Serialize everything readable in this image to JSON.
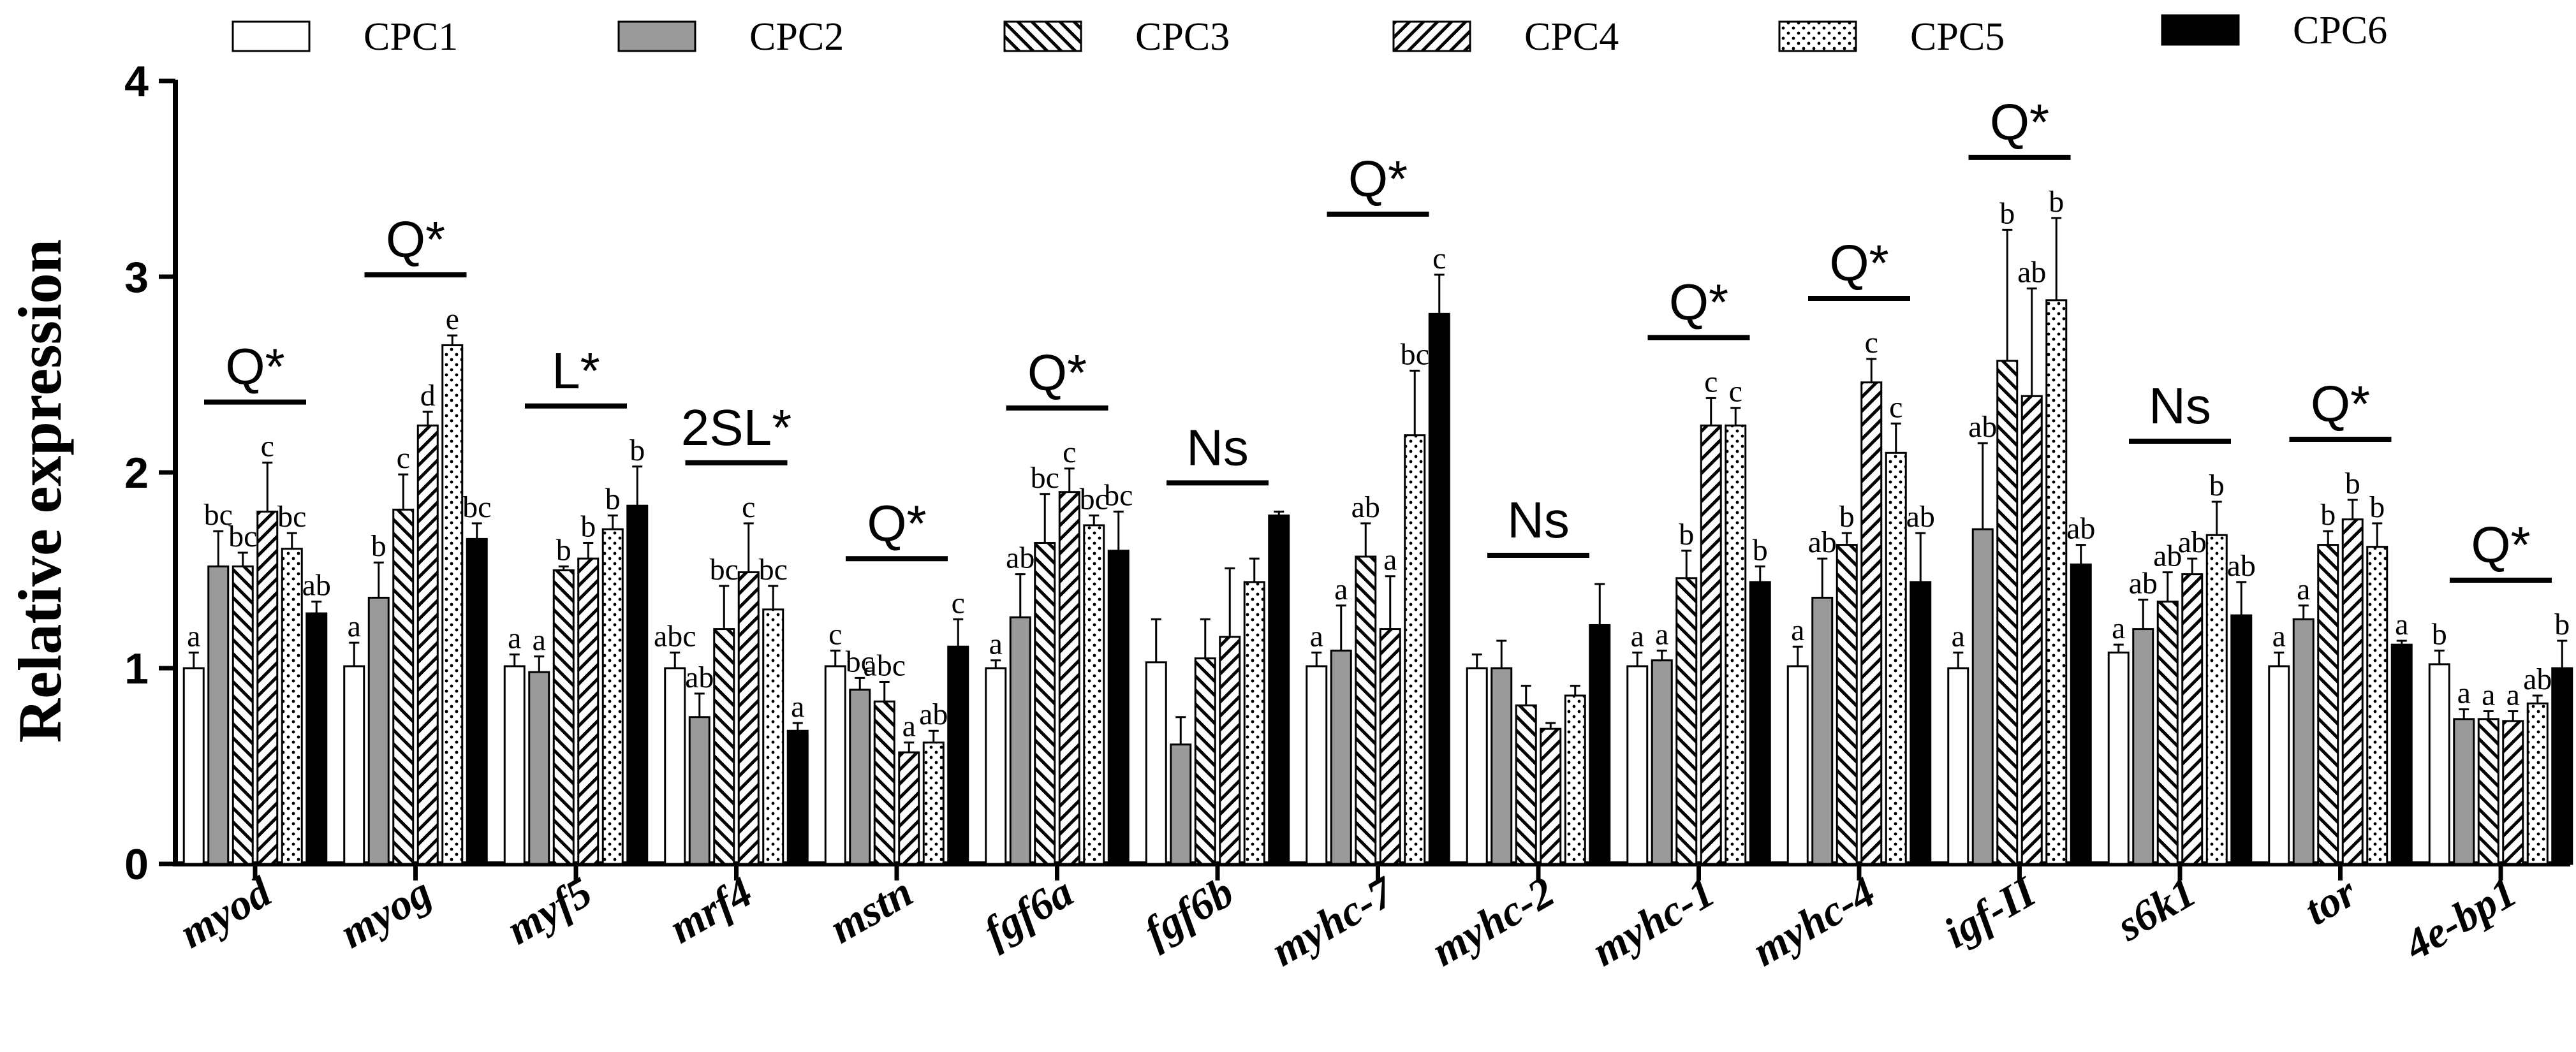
{
  "chart_data": {
    "type": "bar",
    "title": "",
    "xlabel": "",
    "ylabel": "Relative expression",
    "ylim": [
      0,
      4
    ],
    "yticks": [
      0,
      1,
      2,
      3,
      4
    ],
    "legend_position": "top",
    "series": [
      {
        "name": "CPC1",
        "pattern": "white"
      },
      {
        "name": "CPC2",
        "pattern": "gray"
      },
      {
        "name": "CPC3",
        "pattern": "backslash-hatch"
      },
      {
        "name": "CPC4",
        "pattern": "slash-hatch"
      },
      {
        "name": "CPC5",
        "pattern": "dots"
      },
      {
        "name": "CPC6",
        "pattern": "black"
      }
    ],
    "categories": [
      "myod",
      "myog",
      "myf5",
      "mrf4",
      "mstn",
      "fgf6a",
      "fgf6b",
      "myhc-7",
      "myhc-2",
      "myhc-1",
      "myhc-4",
      "igf-II",
      "s6k1",
      "tor",
      "4e-bp1"
    ],
    "groups": [
      {
        "gene": "myod",
        "sig": "Q*",
        "values": [
          1.0,
          1.52,
          1.52,
          1.8,
          1.61,
          1.28
        ],
        "errors": [
          0.08,
          0.18,
          0.07,
          0.25,
          0.08,
          0.06
        ],
        "letters": [
          "a",
          "bc",
          "bc",
          "c",
          "bc",
          "ab"
        ]
      },
      {
        "gene": "myog",
        "sig": "Q*",
        "values": [
          1.01,
          1.36,
          1.81,
          2.24,
          2.65,
          1.66
        ],
        "errors": [
          0.12,
          0.18,
          0.18,
          0.07,
          0.05,
          0.08
        ],
        "letters": [
          "a",
          "b",
          "c",
          "d",
          "e",
          "bc"
        ]
      },
      {
        "gene": "myf5",
        "sig": "L*",
        "values": [
          1.01,
          0.98,
          1.5,
          1.56,
          1.71,
          1.83
        ],
        "errors": [
          0.06,
          0.08,
          0.02,
          0.08,
          0.07,
          0.2
        ],
        "letters": [
          "a",
          "a",
          "b",
          "b",
          "b",
          "b"
        ]
      },
      {
        "gene": "mrf4",
        "sig": "2SL*",
        "values": [
          1.0,
          0.75,
          1.2,
          1.49,
          1.3,
          0.68
        ],
        "errors": [
          0.08,
          0.12,
          0.22,
          0.25,
          0.12,
          0.04
        ],
        "letters": [
          "abc",
          "ab",
          "bc",
          "c",
          "bc",
          "a"
        ]
      },
      {
        "gene": "mstn",
        "sig": "Q*",
        "values": [
          1.01,
          0.89,
          0.83,
          0.57,
          0.62,
          1.11
        ],
        "errors": [
          0.08,
          0.06,
          0.1,
          0.05,
          0.06,
          0.14
        ],
        "letters": [
          "c",
          "bc",
          "abc",
          "a",
          "ab",
          "c"
        ]
      },
      {
        "gene": "fgf6a",
        "sig": "Q*",
        "values": [
          1.0,
          1.26,
          1.64,
          1.9,
          1.73,
          1.6
        ],
        "errors": [
          0.04,
          0.22,
          0.25,
          0.12,
          0.05,
          0.2
        ],
        "letters": [
          "a",
          "ab",
          "bc",
          "c",
          "bc",
          "bc"
        ]
      },
      {
        "gene": "fgf6b",
        "sig": "Ns",
        "values": [
          1.03,
          0.61,
          1.05,
          1.16,
          1.44,
          1.78
        ],
        "errors": [
          0.22,
          0.14,
          0.2,
          0.35,
          0.12,
          0.02
        ],
        "letters": [
          "",
          "",
          "",
          "",
          "",
          ""
        ]
      },
      {
        "gene": "myhc-7",
        "sig": "Q*",
        "values": [
          1.01,
          1.09,
          1.57,
          1.2,
          2.19,
          2.81
        ],
        "errors": [
          0.07,
          0.23,
          0.17,
          0.27,
          0.33,
          0.2
        ],
        "letters": [
          "a",
          "a",
          "ab",
          "a",
          "bc",
          "c"
        ]
      },
      {
        "gene": "myhc-2",
        "sig": "Ns",
        "values": [
          1.0,
          1.0,
          0.81,
          0.69,
          0.86,
          1.22
        ],
        "errors": [
          0.07,
          0.14,
          0.1,
          0.03,
          0.05,
          0.21
        ],
        "letters": [
          "",
          "",
          "",
          "",
          "",
          ""
        ]
      },
      {
        "gene": "myhc-1",
        "sig": "Q*",
        "values": [
          1.01,
          1.04,
          1.46,
          2.24,
          2.24,
          1.44
        ],
        "errors": [
          0.07,
          0.05,
          0.14,
          0.14,
          0.09,
          0.08
        ],
        "letters": [
          "a",
          "a",
          "b",
          "c",
          "c",
          "b"
        ]
      },
      {
        "gene": "myhc-4",
        "sig": "Q*",
        "values": [
          1.01,
          1.36,
          1.63,
          2.46,
          2.1,
          1.44
        ],
        "errors": [
          0.1,
          0.2,
          0.06,
          0.12,
          0.15,
          0.25
        ],
        "letters": [
          "a",
          "ab",
          "b",
          "c",
          "c",
          "ab"
        ]
      },
      {
        "gene": "igf-II",
        "sig": "Q*",
        "values": [
          1.0,
          1.71,
          2.57,
          2.39,
          2.88,
          1.53
        ],
        "errors": [
          0.08,
          0.44,
          0.67,
          0.55,
          0.42,
          0.1
        ],
        "letters": [
          "a",
          "ab",
          "b",
          "ab",
          "b",
          "ab"
        ]
      },
      {
        "gene": "s6k1",
        "sig": "Ns",
        "values": [
          1.08,
          1.2,
          1.34,
          1.48,
          1.68,
          1.27
        ],
        "errors": [
          0.04,
          0.15,
          0.15,
          0.08,
          0.17,
          0.17
        ],
        "letters": [
          "a",
          "ab",
          "ab",
          "ab",
          "b",
          "ab"
        ]
      },
      {
        "gene": "tor",
        "sig": "Q*",
        "values": [
          1.01,
          1.25,
          1.63,
          1.76,
          1.62,
          1.12
        ],
        "errors": [
          0.07,
          0.07,
          0.07,
          0.1,
          0.12,
          0.02
        ],
        "letters": [
          "a",
          "a",
          "b",
          "b",
          "b",
          "a"
        ]
      },
      {
        "gene": "4e-bp1",
        "sig": "Q*",
        "values": [
          1.02,
          0.74,
          0.74,
          0.73,
          0.82,
          1.0
        ],
        "errors": [
          0.07,
          0.05,
          0.04,
          0.05,
          0.04,
          0.14
        ],
        "letters": [
          "b",
          "a",
          "a",
          "a",
          "ab",
          "b"
        ]
      }
    ]
  }
}
